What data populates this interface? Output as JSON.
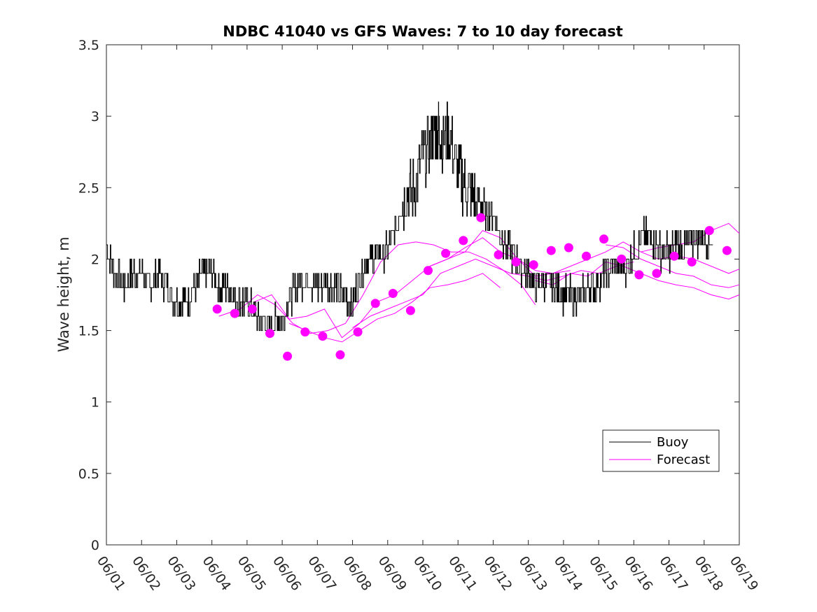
{
  "chart_data": {
    "type": "line",
    "title": "NDBC 41040 vs GFS Waves: 7 to 10 day forecast",
    "xlabel": "",
    "ylabel": "Wave height, m",
    "ylim": [
      0,
      3.5
    ],
    "yticks": [
      "0",
      "0.5",
      "1",
      "1.5",
      "2",
      "2.5",
      "3",
      "3.5"
    ],
    "xlim_days": [
      1,
      19
    ],
    "xtick_labels": [
      "06/01",
      "06/02",
      "06/03",
      "06/04",
      "06/05",
      "06/06",
      "06/07",
      "06/08",
      "06/09",
      "06/10",
      "06/11",
      "06/12",
      "06/13",
      "06/14",
      "06/15",
      "06/16",
      "06/17",
      "06/18",
      "06/19"
    ],
    "grid": false,
    "legend": {
      "position": "bottom-right",
      "entries": [
        "Buoy",
        "Forecast"
      ]
    },
    "colors": {
      "buoy": "#000000",
      "forecast": "#ff00ff"
    },
    "buoy": {
      "name": "Buoy",
      "points": [
        [
          1.0,
          2.1
        ],
        [
          1.25,
          1.9
        ],
        [
          1.5,
          1.8
        ],
        [
          1.75,
          1.9
        ],
        [
          2.0,
          1.9
        ],
        [
          2.25,
          1.8
        ],
        [
          2.5,
          1.9
        ],
        [
          2.75,
          1.8
        ],
        [
          3.0,
          1.7
        ],
        [
          3.25,
          1.7
        ],
        [
          3.5,
          1.8
        ],
        [
          3.75,
          1.9
        ],
        [
          4.0,
          1.9
        ],
        [
          4.25,
          1.8
        ],
        [
          4.5,
          1.8
        ],
        [
          4.75,
          1.7
        ],
        [
          5.0,
          1.7
        ],
        [
          5.25,
          1.6
        ],
        [
          5.5,
          1.55
        ],
        [
          5.75,
          1.55
        ],
        [
          6.0,
          1.6
        ],
        [
          6.25,
          1.75
        ],
        [
          6.5,
          1.85
        ],
        [
          6.75,
          1.85
        ],
        [
          7.0,
          1.8
        ],
        [
          7.25,
          1.85
        ],
        [
          7.5,
          1.8
        ],
        [
          7.75,
          1.75
        ],
        [
          8.0,
          1.7
        ],
        [
          8.25,
          1.9
        ],
        [
          8.5,
          2.0
        ],
        [
          8.75,
          2.05
        ],
        [
          9.0,
          2.05
        ],
        [
          9.25,
          2.25
        ],
        [
          9.5,
          2.45
        ],
        [
          9.75,
          2.5
        ],
        [
          10.0,
          2.7
        ],
        [
          10.25,
          2.85
        ],
        [
          10.4,
          2.9
        ],
        [
          10.5,
          2.85
        ],
        [
          10.75,
          2.85
        ],
        [
          11.0,
          2.6
        ],
        [
          11.25,
          2.5
        ],
        [
          11.5,
          2.4
        ],
        [
          11.75,
          2.35
        ],
        [
          12.0,
          2.3
        ],
        [
          12.25,
          2.15
        ],
        [
          12.5,
          2.05
        ],
        [
          12.75,
          1.95
        ],
        [
          13.0,
          1.9
        ],
        [
          13.25,
          1.8
        ],
        [
          13.5,
          1.85
        ],
        [
          13.75,
          1.8
        ],
        [
          14.0,
          1.75
        ],
        [
          14.25,
          1.75
        ],
        [
          14.5,
          1.75
        ],
        [
          14.75,
          1.8
        ],
        [
          15.0,
          1.85
        ],
        [
          15.25,
          1.9
        ],
        [
          15.5,
          1.95
        ],
        [
          15.75,
          1.95
        ],
        [
          16.0,
          2.05
        ],
        [
          16.25,
          2.15
        ],
        [
          16.5,
          2.15
        ],
        [
          16.75,
          2.05
        ],
        [
          17.0,
          2.05
        ],
        [
          17.25,
          2.1
        ],
        [
          17.5,
          2.1
        ],
        [
          17.75,
          2.15
        ],
        [
          18.0,
          2.15
        ],
        [
          18.25,
          2.1
        ]
      ]
    },
    "forecast_runs": [
      {
        "name": "Forecast",
        "points": [
          [
            4.2,
            1.6
          ],
          [
            4.8,
            1.65
          ],
          [
            5.3,
            1.75
          ],
          [
            5.8,
            1.68
          ],
          [
            6.3,
            1.55
          ],
          [
            6.8,
            1.48
          ],
          [
            7.3,
            1.5
          ],
          [
            7.8,
            1.55
          ],
          [
            8.3,
            1.75
          ],
          [
            8.8,
            1.98
          ],
          [
            9.3,
            2.1
          ],
          [
            9.8,
            2.12
          ],
          [
            10.3,
            2.1
          ],
          [
            10.8,
            2.05
          ],
          [
            11.3,
            2.05
          ],
          [
            11.8,
            2.0
          ],
          [
            12.3,
            1.92
          ],
          [
            12.8,
            1.82
          ],
          [
            13.2,
            1.68
          ]
        ]
      },
      {
        "name": "Forecast",
        "points": [
          [
            5.2,
            1.7
          ],
          [
            5.7,
            1.75
          ],
          [
            6.2,
            1.58
          ],
          [
            6.7,
            1.6
          ],
          [
            7.2,
            1.65
          ],
          [
            7.7,
            1.45
          ],
          [
            8.2,
            1.55
          ],
          [
            8.7,
            1.7
          ],
          [
            9.2,
            1.75
          ],
          [
            9.7,
            1.85
          ],
          [
            10.2,
            1.95
          ],
          [
            10.7,
            2.0
          ],
          [
            11.2,
            2.05
          ],
          [
            11.7,
            2.2
          ],
          [
            12.2,
            2.15
          ],
          [
            12.7,
            2.0
          ],
          [
            13.2,
            1.92
          ],
          [
            13.7,
            1.9
          ],
          [
            14.2,
            1.92
          ]
        ]
      },
      {
        "name": "Forecast",
        "points": [
          [
            6.2,
            1.55
          ],
          [
            6.7,
            1.5
          ],
          [
            7.2,
            1.45
          ],
          [
            7.7,
            1.42
          ],
          [
            8.2,
            1.5
          ],
          [
            8.7,
            1.58
          ],
          [
            9.2,
            1.62
          ],
          [
            9.7,
            1.7
          ],
          [
            10.2,
            1.8
          ],
          [
            10.7,
            1.82
          ],
          [
            11.2,
            1.85
          ],
          [
            11.7,
            1.9
          ],
          [
            12.2,
            1.8
          ]
        ]
      },
      {
        "name": "Forecast",
        "points": [
          [
            8.0,
            1.52
          ],
          [
            8.5,
            1.6
          ],
          [
            9.0,
            1.65
          ],
          [
            9.5,
            1.7
          ],
          [
            10.0,
            1.75
          ],
          [
            10.5,
            1.9
          ],
          [
            11.0,
            1.95
          ],
          [
            11.5,
            2.0
          ],
          [
            12.0,
            1.95
          ],
          [
            12.5,
            1.9
          ],
          [
            13.0,
            1.88
          ],
          [
            13.5,
            1.85
          ],
          [
            14.0,
            1.88
          ],
          [
            14.5,
            1.92
          ],
          [
            15.0,
            1.9
          ],
          [
            15.5,
            1.95
          ],
          [
            16.0,
            1.98
          ]
        ]
      },
      {
        "name": "Forecast",
        "points": [
          [
            10.2,
            1.95
          ],
          [
            10.7,
            2.0
          ],
          [
            11.2,
            2.08
          ],
          [
            11.7,
            2.15
          ],
          [
            12.2,
            2.05
          ],
          [
            12.7,
            2.0
          ],
          [
            13.2,
            1.88
          ],
          [
            13.7,
            1.9
          ],
          [
            14.2,
            1.95
          ],
          [
            14.7,
            2.0
          ],
          [
            15.2,
            2.05
          ],
          [
            15.7,
            2.12
          ],
          [
            16.2,
            2.05
          ],
          [
            16.7,
            2.0
          ],
          [
            17.2,
            2.02
          ],
          [
            17.7,
            2.0
          ],
          [
            18.2,
            1.95
          ],
          [
            18.7,
            1.9
          ],
          [
            19.0,
            1.93
          ]
        ]
      },
      {
        "name": "Forecast",
        "points": [
          [
            13.2,
            1.85
          ],
          [
            13.7,
            1.82
          ],
          [
            14.2,
            1.9
          ],
          [
            14.7,
            1.88
          ],
          [
            15.2,
            1.98
          ],
          [
            15.7,
            1.95
          ],
          [
            16.2,
            1.9
          ],
          [
            16.7,
            1.85
          ],
          [
            17.2,
            1.82
          ],
          [
            17.7,
            1.8
          ],
          [
            18.2,
            1.75
          ],
          [
            18.7,
            1.72
          ],
          [
            19.0,
            1.75
          ]
        ]
      },
      {
        "name": "Forecast",
        "points": [
          [
            15.2,
            2.1
          ],
          [
            15.7,
            2.08
          ],
          [
            16.2,
            2.0
          ],
          [
            16.7,
            1.95
          ],
          [
            17.2,
            1.9
          ],
          [
            17.7,
            1.88
          ],
          [
            18.2,
            1.82
          ],
          [
            18.7,
            1.8
          ],
          [
            19.0,
            1.82
          ]
        ]
      },
      {
        "name": "Forecast",
        "points": [
          [
            16.2,
            2.05
          ],
          [
            16.7,
            2.08
          ],
          [
            17.2,
            2.1
          ],
          [
            17.7,
            2.12
          ],
          [
            18.2,
            2.2
          ],
          [
            18.7,
            2.25
          ],
          [
            19.0,
            2.18
          ]
        ]
      }
    ],
    "forecast_markers": [
      [
        4.15,
        1.65
      ],
      [
        4.65,
        1.62
      ],
      [
        5.15,
        1.65
      ],
      [
        5.65,
        1.48
      ],
      [
        6.15,
        1.32
      ],
      [
        6.65,
        1.49
      ],
      [
        7.15,
        1.46
      ],
      [
        7.65,
        1.33
      ],
      [
        8.15,
        1.49
      ],
      [
        8.65,
        1.69
      ],
      [
        9.15,
        1.76
      ],
      [
        9.65,
        1.64
      ],
      [
        10.15,
        1.92
      ],
      [
        10.65,
        2.04
      ],
      [
        11.15,
        2.13
      ],
      [
        11.65,
        2.29
      ],
      [
        12.15,
        2.03
      ],
      [
        12.65,
        1.98
      ],
      [
        13.15,
        1.96
      ],
      [
        13.65,
        2.06
      ],
      [
        14.15,
        2.08
      ],
      [
        14.65,
        2.02
      ],
      [
        15.15,
        2.14
      ],
      [
        15.65,
        2.0
      ],
      [
        16.15,
        1.89
      ],
      [
        16.65,
        1.9
      ],
      [
        17.15,
        2.02
      ],
      [
        17.65,
        1.98
      ],
      [
        18.15,
        2.2
      ],
      [
        18.65,
        2.06
      ]
    ]
  }
}
